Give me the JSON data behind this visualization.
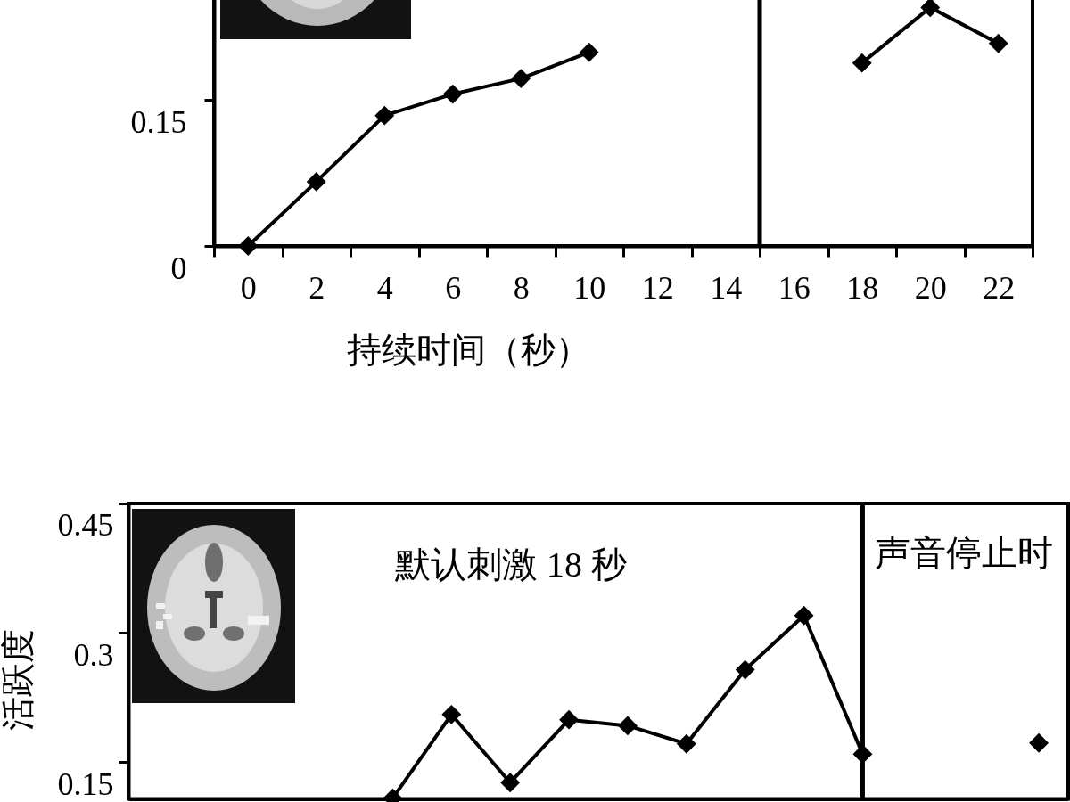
{
  "chart_data": [
    {
      "type": "line",
      "x": [
        0,
        2,
        4,
        6,
        8,
        10,
        12,
        14,
        16,
        18,
        20,
        22
      ],
      "series": [
        {
          "color": "#000000",
          "values": [
            0,
            0.066,
            0.134,
            0.156,
            0.172,
            0.199,
            null,
            null,
            null,
            0.188,
            0.245,
            0.208
          ]
        }
      ],
      "xlabel": "持续时间（秒）",
      "xlim": [
        -1,
        23
      ],
      "xticks": [
        {
          "value": -1,
          "label": null
        },
        0,
        {
          "value": 1,
          "label": null
        },
        2,
        {
          "value": 3,
          "label": null
        },
        4,
        {
          "value": 5,
          "label": null
        },
        6,
        {
          "value": 7,
          "label": null
        },
        8,
        {
          "value": 9,
          "label": null
        },
        10,
        {
          "value": 11,
          "label": null
        },
        12,
        {
          "value": 13,
          "label": null
        },
        14,
        {
          "value": 15,
          "label": null
        },
        16,
        {
          "value": 17,
          "label": null
        },
        18,
        {
          "value": 19,
          "label": null
        },
        20,
        {
          "value": 21,
          "label": null
        },
        22,
        {
          "value": 23,
          "label": null
        }
      ],
      "ylim": [
        0,
        0.26
      ],
      "yticks": [
        0,
        0.15
      ],
      "ref_lines": [
        {
          "axis": "x",
          "value": 15,
          "color": "#000000"
        }
      ],
      "marker": "diamond"
    },
    {
      "type": "line",
      "categories": [
        null,
        null,
        null,
        null,
        null,
        null,
        null,
        null,
        null,
        null,
        null,
        null,
        null,
        null,
        null,
        null
      ],
      "series": [
        {
          "color": "#000000",
          "values": [
            null,
            null,
            null,
            null,
            0.108,
            0.205,
            0.126,
            0.199,
            0.192,
            0.171,
            0.257,
            0.32,
            0.159,
            null,
            null,
            0.172
          ]
        }
      ],
      "ylabel": "活跃度",
      "ylim": [
        0.107,
        0.45
      ],
      "yticks": [
        0.15,
        0.3,
        0.45
      ],
      "annotations": [
        "默认刺激 18 秒",
        "声音停止时"
      ],
      "tick_labels": "y",
      "marker": "diamond"
    }
  ]
}
